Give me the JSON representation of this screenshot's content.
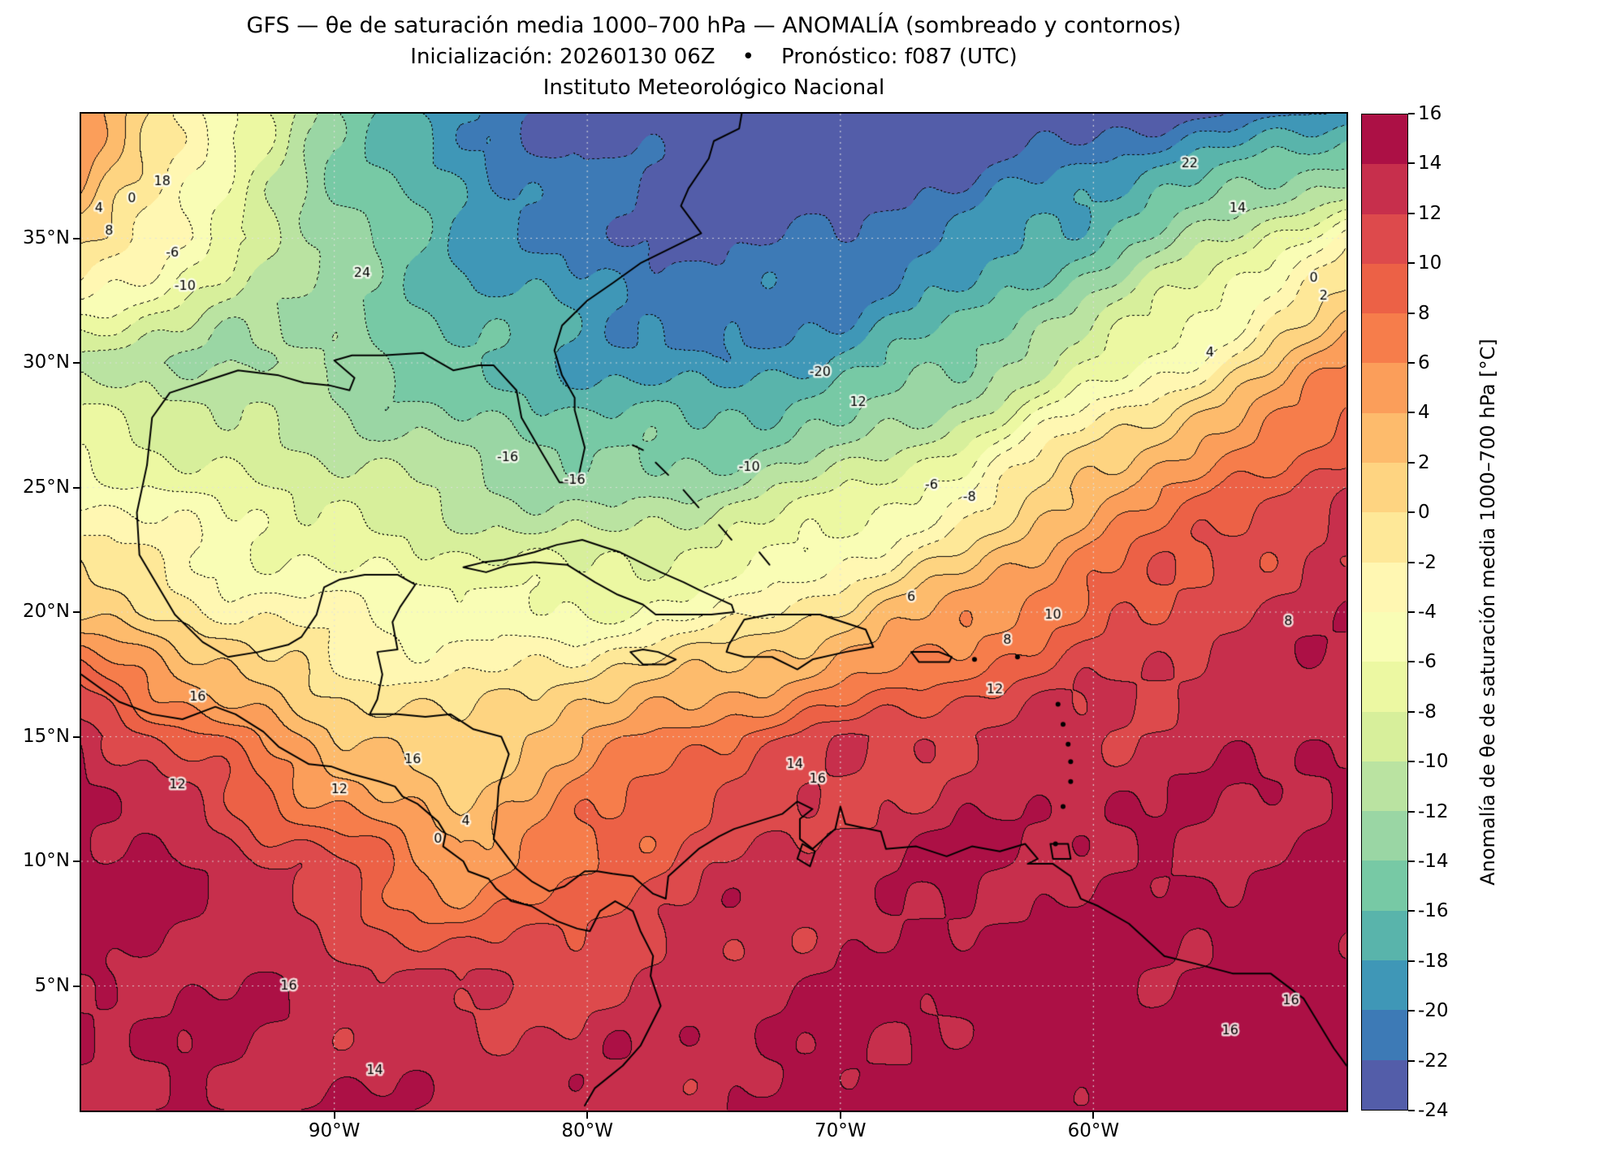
{
  "header": {
    "title_line1": "GFS — θe de saturación media 1000–700 hPa — ANOMALÍA (sombreado y contornos)",
    "title_line2": "Inicialización: 20260130 06Z    •    Pronóstico: f087 (UTC)",
    "title_line3": "Instituto Meteorológico Nacional"
  },
  "axes": {
    "x_ticks": [
      {
        "label": "90°W",
        "lon_degW": 90
      },
      {
        "label": "80°W",
        "lon_degW": 80
      },
      {
        "label": "70°W",
        "lon_degW": 70
      },
      {
        "label": "60°W",
        "lon_degW": 60
      }
    ],
    "y_ticks": [
      {
        "label": "35°N",
        "lat_degN": 35
      },
      {
        "label": "30°N",
        "lat_degN": 30
      },
      {
        "label": "25°N",
        "lat_degN": 25
      },
      {
        "label": "20°N",
        "lat_degN": 20
      },
      {
        "label": "15°N",
        "lat_degN": 15
      },
      {
        "label": "10°N",
        "lat_degN": 10
      },
      {
        "label": "5°N",
        "lat_degN": 5
      }
    ]
  },
  "colorbar": {
    "label": "Anomalía de θe de saturación media 1000–700 hPa [°C]",
    "tick_labels": [
      "16",
      "14",
      "12",
      "10",
      "8",
      "6",
      "4",
      "2",
      "0",
      "-2",
      "-4",
      "-6",
      "-8",
      "-10",
      "-12",
      "-14",
      "-16",
      "-18",
      "-20",
      "-22",
      "-24"
    ]
  },
  "chart_data": {
    "type": "heatmap",
    "subtype": "filled_contour_map",
    "title": "GFS — θe de saturación media 1000–700 hPa — ANOMALÍA (sombreado y contornos)",
    "subtitle": "Inicialización: 20260130 06Z • Pronóstico: f087 (UTC) — Instituto Meteorológico Nacional",
    "units": "°C",
    "xlabel": "",
    "ylabel": "",
    "lon_range_degW": [
      100,
      50
    ],
    "lat_range_degN": [
      0,
      40
    ],
    "levels": [
      -24,
      -22,
      -20,
      -18,
      -16,
      -14,
      -12,
      -10,
      -8,
      -6,
      -4,
      -2,
      0,
      2,
      4,
      6,
      8,
      10,
      12,
      14,
      16
    ],
    "contour_interval": 2,
    "negative_contours_dotted": true,
    "colormap_anchors": [
      "#5e4fa2",
      "#3288bd",
      "#66c2a5",
      "#abdda4",
      "#e6f598",
      "#ffffbf",
      "#fee08b",
      "#fdae61",
      "#f46d43",
      "#d53e4f",
      "#9e0142"
    ],
    "bin_colors": [
      "#535DA9",
      "#3D7AB6",
      "#3F97B7",
      "#59B4AB",
      "#77C9A5",
      "#9AD6A4",
      "#BAE3A1",
      "#D7EF9B",
      "#ECF8A2",
      "#F9FDB5",
      "#FFF7B2",
      "#FEE898",
      "#FED481",
      "#FDBB6C",
      "#FB9E5A",
      "#F67D4B",
      "#EC6146",
      "#DD4A4C",
      "#C72F4C",
      "#AC1045"
    ],
    "grid": {
      "lons_degW": [
        100,
        95,
        90,
        85,
        80,
        75,
        70,
        65,
        60,
        55,
        50
      ],
      "lats_degN": [
        40,
        35,
        30,
        25,
        20,
        15,
        10,
        5,
        0
      ],
      "values": [
        [
          6,
          -4,
          -14,
          -20,
          -23,
          -24,
          -24,
          -24,
          -23,
          -22,
          -20
        ],
        [
          2,
          -6,
          -13,
          -18,
          -21,
          -23,
          -22,
          -20,
          -16,
          -10,
          -4
        ],
        [
          -11,
          -12,
          -13,
          -16,
          -18,
          -20,
          -18,
          -14,
          -8,
          -2,
          6
        ],
        [
          -4,
          -7,
          -9,
          -11,
          -13,
          -12,
          -9,
          -5,
          4,
          8,
          12
        ],
        [
          2,
          -2,
          -4,
          -5,
          -6,
          -4,
          0,
          5,
          9,
          12,
          13
        ],
        [
          14,
          8,
          2,
          0,
          5,
          8,
          11,
          12,
          13,
          13,
          14
        ],
        [
          15,
          14,
          10,
          4,
          8,
          12,
          13,
          14,
          14,
          14,
          15
        ],
        [
          14,
          14,
          13,
          12,
          12,
          13,
          14,
          15,
          15,
          15,
          15
        ],
        [
          14,
          14,
          14,
          13,
          13,
          14,
          15,
          15,
          15,
          16,
          16
        ]
      ]
    },
    "contour_labels": [
      {
        "text": "18",
        "fx": 0.064,
        "fy": 0.068
      },
      {
        "text": "4",
        "fx": 0.014,
        "fy": 0.095
      },
      {
        "text": "8",
        "fx": 0.022,
        "fy": 0.118
      },
      {
        "text": "0",
        "fx": 0.04,
        "fy": 0.085
      },
      {
        "text": "-6",
        "fx": 0.072,
        "fy": 0.14
      },
      {
        "text": "-10",
        "fx": 0.082,
        "fy": 0.173
      },
      {
        "text": "24",
        "fx": 0.222,
        "fy": 0.16
      },
      {
        "text": "-20",
        "fx": 0.584,
        "fy": 0.26
      },
      {
        "text": "12",
        "fx": 0.614,
        "fy": 0.29
      },
      {
        "text": "-16",
        "fx": 0.39,
        "fy": 0.368
      },
      {
        "text": "-16",
        "fx": 0.337,
        "fy": 0.345
      },
      {
        "text": "-10",
        "fx": 0.528,
        "fy": 0.355
      },
      {
        "text": "-6",
        "fx": 0.672,
        "fy": 0.373
      },
      {
        "text": "-8",
        "fx": 0.702,
        "fy": 0.385
      },
      {
        "text": "22",
        "fx": 0.876,
        "fy": 0.05
      },
      {
        "text": "14",
        "fx": 0.914,
        "fy": 0.095
      },
      {
        "text": "0",
        "fx": 0.974,
        "fy": 0.165
      },
      {
        "text": "2",
        "fx": 0.982,
        "fy": 0.183
      },
      {
        "text": "4",
        "fx": 0.892,
        "fy": 0.24
      },
      {
        "text": "6",
        "fx": 0.656,
        "fy": 0.485
      },
      {
        "text": "10",
        "fx": 0.768,
        "fy": 0.503
      },
      {
        "text": "8",
        "fx": 0.732,
        "fy": 0.528
      },
      {
        "text": "12",
        "fx": 0.722,
        "fy": 0.578
      },
      {
        "text": "14",
        "fx": 0.564,
        "fy": 0.653
      },
      {
        "text": "16",
        "fx": 0.582,
        "fy": 0.668
      },
      {
        "text": "8",
        "fx": 0.954,
        "fy": 0.51
      },
      {
        "text": "16",
        "fx": 0.092,
        "fy": 0.585
      },
      {
        "text": "12",
        "fx": 0.076,
        "fy": 0.673
      },
      {
        "text": "12",
        "fx": 0.204,
        "fy": 0.678
      },
      {
        "text": "16",
        "fx": 0.262,
        "fy": 0.648
      },
      {
        "text": "0",
        "fx": 0.282,
        "fy": 0.728
      },
      {
        "text": "4",
        "fx": 0.304,
        "fy": 0.71
      },
      {
        "text": "14",
        "fx": 0.232,
        "fy": 0.96
      },
      {
        "text": "16",
        "fx": 0.164,
        "fy": 0.875
      },
      {
        "text": "16",
        "fx": 0.908,
        "fy": 0.92
      },
      {
        "text": "16",
        "fx": 0.956,
        "fy": 0.89
      }
    ],
    "grid_lines": {
      "style": "dotted",
      "color": "#dcdcdc"
    }
  }
}
